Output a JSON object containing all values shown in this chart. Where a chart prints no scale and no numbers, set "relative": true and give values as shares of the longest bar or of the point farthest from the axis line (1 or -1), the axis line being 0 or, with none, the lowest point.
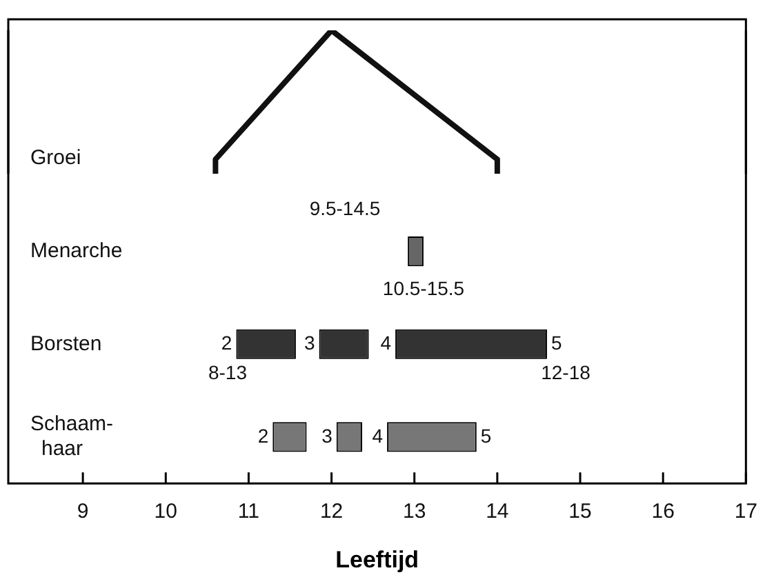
{
  "chart_data": [
    {
      "type": "line",
      "relative": true,
      "x": [
        10.6,
        10.6,
        12.0,
        14.0,
        14.0
      ],
      "values": [
        0,
        0.1,
        1,
        0.1,
        0
      ],
      "color": "#111111",
      "xlim": [
        8.1,
        17
      ],
      "tick_labels": false,
      "grid": false,
      "legend": false,
      "marker": "none",
      "line_style": "solid"
    },
    {
      "type": "bar",
      "orientation": "horizontal",
      "xlabel": "Leeftijd",
      "categories": [
        null,
        "Groei",
        "Menarche",
        "Borsten",
        "Schaam-\nhaar"
      ],
      "series": [
        {
          "colors": [
            null,
            null,
            null,
            "#333333",
            "#777777"
          ],
          "values": [
            null,
            null,
            null,
            0.72,
            0.41
          ],
          "base": [
            null,
            null,
            null,
            10.85,
            11.29
          ]
        },
        {
          "colors": [
            null,
            null,
            null,
            "#333333",
            "#777777"
          ],
          "values": [
            null,
            null,
            null,
            0.6,
            0.31
          ],
          "base": [
            null,
            null,
            null,
            11.85,
            12.06
          ]
        },
        {
          "colors": [
            null,
            null,
            null,
            "#333333",
            "#777777"
          ],
          "values": [
            null,
            null,
            null,
            1.83,
            1.08
          ],
          "base": [
            null,
            null,
            null,
            12.77,
            12.67
          ]
        },
        {
          "colors": [
            null,
            null,
            "#666666",
            null,
            null
          ],
          "values": [
            null,
            null,
            0.19,
            null,
            null
          ],
          "base": [
            null,
            null,
            12.92,
            null,
            null
          ]
        }
      ],
      "xlim": [
        8.1,
        17
      ],
      "xticks": [
        9,
        10,
        11,
        12,
        13,
        14,
        15,
        16,
        17
      ],
      "tick_labels": "x",
      "grid": false,
      "legend": false,
      "annotations": [
        "9.5-14.5",
        "10.5-15.5",
        "8-13",
        "12-18",
        {
          "text": "2",
          "x": 10.85,
          "y": "Borsten"
        },
        {
          "text": "3",
          "x": 11.85,
          "y": "Borsten"
        },
        {
          "text": "4",
          "x": 12.77,
          "y": "Borsten"
        },
        {
          "text": "5",
          "x": 14.6,
          "y": "Borsten"
        },
        {
          "text": "2",
          "x": 11.29,
          "y": "Schaam-\nhaar"
        },
        {
          "text": "3",
          "x": 12.06,
          "y": "Schaam-\nhaar"
        },
        {
          "text": "4",
          "x": 12.67,
          "y": "Schaam-\nhaar"
        },
        {
          "text": "5",
          "x": 13.75,
          "y": "Schaam-\nhaar"
        }
      ]
    }
  ]
}
